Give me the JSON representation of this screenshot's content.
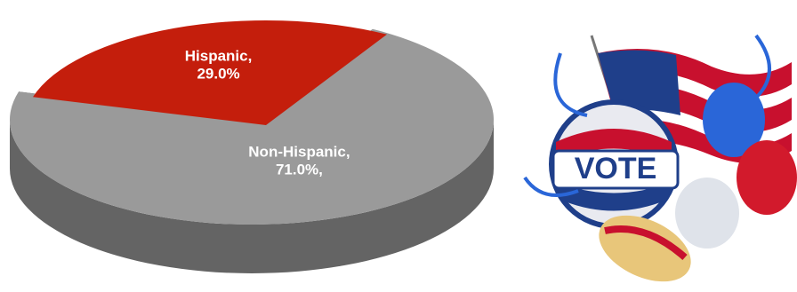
{
  "chart_data": {
    "type": "pie3d",
    "categories": [
      "Non-Hispanic,",
      "Hispanic,"
    ],
    "values": [
      71.0,
      29.0
    ],
    "value_labels": [
      "71.0%,",
      "29.0%"
    ],
    "colors": [
      "#9a9a9a",
      "#c41e0c"
    ]
  }
}
